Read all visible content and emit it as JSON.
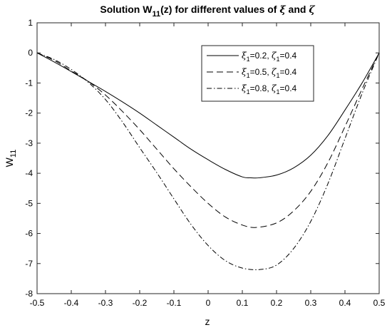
{
  "chart_data": {
    "type": "line",
    "title": {
      "prefix": "Solution W",
      "subscript": "11",
      "middle": "(z) for different values of ",
      "greek1": "ξ",
      "and": " and ",
      "greek2": "ζ"
    },
    "xlabel": "z",
    "ylabel": {
      "base": "W",
      "subscript": "11"
    },
    "xlim": [
      -0.5,
      0.5
    ],
    "ylim": [
      -8,
      1
    ],
    "xticks": [
      -0.5,
      -0.4,
      -0.3,
      -0.2,
      -0.1,
      0,
      0.1,
      0.2,
      0.3,
      0.4,
      0.5
    ],
    "yticks": [
      -8,
      -7,
      -6,
      -5,
      -4,
      -3,
      -2,
      -1,
      0,
      1
    ],
    "grid": false,
    "legend_position": "top-right",
    "series": [
      {
        "legend": {
          "sym1": "ξ",
          "sub1": "1",
          "val1": "=0.2, ",
          "sym2": "ζ",
          "sub2": "1",
          "val2": "=0.4"
        },
        "linestyle": "solid",
        "x": [
          -0.5,
          -0.45,
          -0.4,
          -0.35,
          -0.3,
          -0.25,
          -0.2,
          -0.15,
          -0.1,
          -0.05,
          0,
          0.05,
          0.1,
          0.125,
          0.15,
          0.2,
          0.25,
          0.3,
          0.35,
          0.4,
          0.45,
          0.5
        ],
        "y": [
          0,
          -0.3,
          -0.62,
          -0.95,
          -1.28,
          -1.63,
          -2.0,
          -2.4,
          -2.8,
          -3.2,
          -3.55,
          -3.87,
          -4.12,
          -4.15,
          -4.15,
          -4.06,
          -3.82,
          -3.4,
          -2.75,
          -1.9,
          -1.0,
          0
        ]
      },
      {
        "legend": {
          "sym1": "ξ",
          "sub1": "1",
          "val1": "=0.5, ",
          "sym2": "ζ",
          "sub2": "1",
          "val2": "=0.4"
        },
        "linestyle": "dashed",
        "x": [
          -0.5,
          -0.45,
          -0.4,
          -0.35,
          -0.3,
          -0.25,
          -0.2,
          -0.15,
          -0.1,
          -0.05,
          0,
          0.05,
          0.1,
          0.14,
          0.2,
          0.25,
          0.3,
          0.35,
          0.4,
          0.45,
          0.5
        ],
        "y": [
          0,
          -0.25,
          -0.6,
          -0.95,
          -1.4,
          -1.95,
          -2.55,
          -3.2,
          -3.85,
          -4.45,
          -5.0,
          -5.45,
          -5.72,
          -5.8,
          -5.65,
          -5.25,
          -4.6,
          -3.65,
          -2.45,
          -1.2,
          0
        ]
      },
      {
        "legend": {
          "sym1": "ξ",
          "sub1": "1",
          "val1": "=0.8, ",
          "sym2": "ζ",
          "sub2": "1",
          "val2": "=0.4"
        },
        "linestyle": "dashdot",
        "x": [
          -0.5,
          -0.45,
          -0.4,
          -0.35,
          -0.3,
          -0.25,
          -0.2,
          -0.15,
          -0.1,
          -0.05,
          0,
          0.05,
          0.1,
          0.15,
          0.2,
          0.25,
          0.3,
          0.35,
          0.4,
          0.45,
          0.5
        ],
        "y": [
          0,
          -0.22,
          -0.55,
          -0.98,
          -1.55,
          -2.3,
          -3.15,
          -3.98,
          -4.85,
          -5.7,
          -6.4,
          -6.9,
          -7.15,
          -7.2,
          -7.05,
          -6.5,
          -5.6,
          -4.35,
          -2.85,
          -1.35,
          0
        ]
      }
    ]
  }
}
